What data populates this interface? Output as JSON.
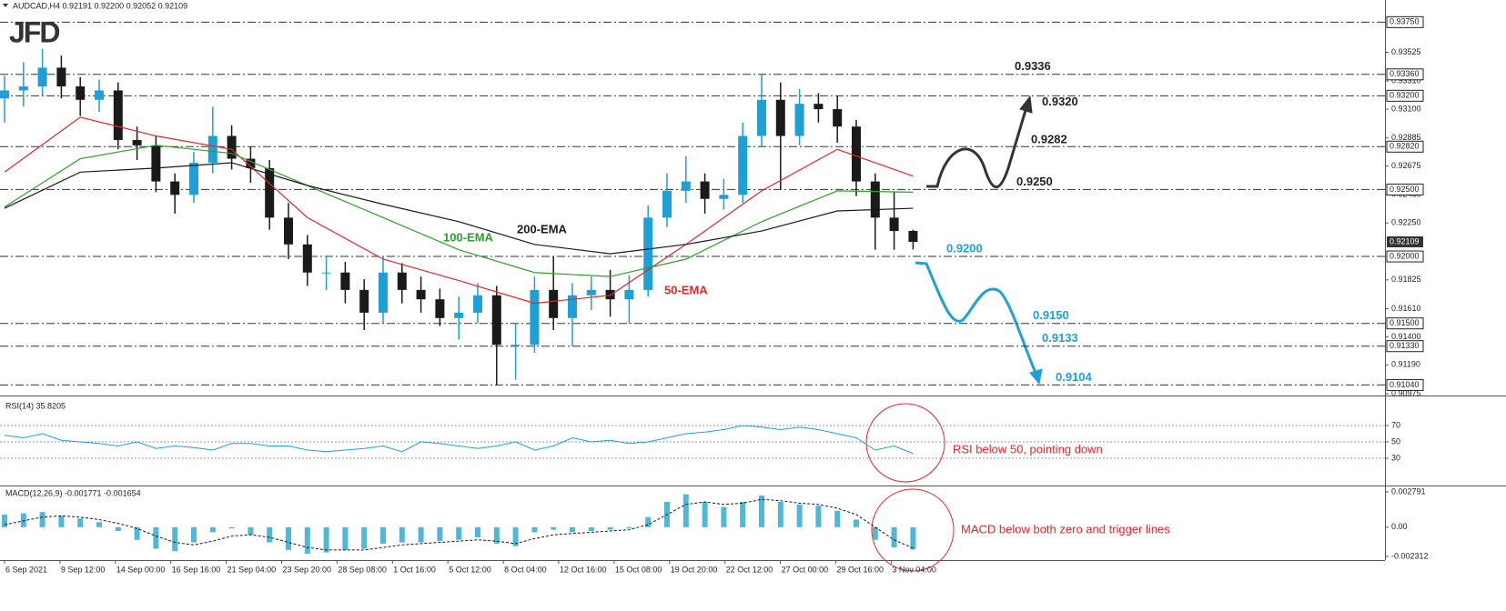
{
  "chart_data": [
    {
      "type": "candlestick",
      "header": "AUDCAD,H4 0.92191 0.92200 0.92052 0.92109",
      "logo": "JFD",
      "open": [
        0.9318,
        0.9324,
        0.9327,
        0.9341,
        0.9327,
        0.9317,
        0.9324,
        0.9287,
        0.9283,
        0.9256,
        0.9246,
        0.927,
        0.929,
        0.9273,
        0.9266,
        0.9229,
        0.9209,
        0.9188,
        0.9188,
        0.9175,
        0.9158,
        0.9188,
        0.9175,
        0.9168,
        0.9154,
        0.9158,
        0.9171,
        0.9134,
        0.9134,
        0.9175,
        0.9154,
        0.9171,
        0.9175,
        0.9168,
        0.9175,
        0.9229,
        0.9249,
        0.9256,
        0.9243,
        0.9246,
        0.929,
        0.9317,
        0.929,
        0.9314,
        0.931,
        0.9297,
        0.9256,
        0.9229,
        0.92191
      ],
      "high": [
        0.9335,
        0.9345,
        0.9355,
        0.935,
        0.9334,
        0.9332,
        0.933,
        0.9297,
        0.929,
        0.9262,
        0.9278,
        0.9312,
        0.9298,
        0.9282,
        0.9272,
        0.924,
        0.9216,
        0.92,
        0.9196,
        0.9183,
        0.92,
        0.9195,
        0.9185,
        0.9176,
        0.917,
        0.918,
        0.9178,
        0.915,
        0.9185,
        0.92,
        0.918,
        0.9185,
        0.919,
        0.9186,
        0.9238,
        0.9262,
        0.9275,
        0.9262,
        0.9258,
        0.93,
        0.9336,
        0.933,
        0.9325,
        0.9322,
        0.932,
        0.9302,
        0.9262,
        0.9248,
        0.922
      ],
      "low": [
        0.93,
        0.9312,
        0.932,
        0.9318,
        0.9305,
        0.9308,
        0.928,
        0.9272,
        0.9248,
        0.9232,
        0.924,
        0.9262,
        0.9265,
        0.9255,
        0.922,
        0.9198,
        0.9178,
        0.9175,
        0.9165,
        0.9145,
        0.915,
        0.9165,
        0.9158,
        0.9148,
        0.9138,
        0.915,
        0.9104,
        0.9108,
        0.9128,
        0.9145,
        0.9133,
        0.916,
        0.9155,
        0.915,
        0.917,
        0.9222,
        0.924,
        0.9232,
        0.9235,
        0.924,
        0.9282,
        0.925,
        0.9283,
        0.93,
        0.9285,
        0.9245,
        0.9205,
        0.9205,
        0.92052
      ],
      "close": [
        0.9324,
        0.9327,
        0.9341,
        0.9327,
        0.9317,
        0.9324,
        0.9287,
        0.9283,
        0.9256,
        0.9246,
        0.927,
        0.929,
        0.9273,
        0.9266,
        0.9229,
        0.9209,
        0.9188,
        0.9188,
        0.9175,
        0.9158,
        0.9188,
        0.9175,
        0.9168,
        0.9154,
        0.9158,
        0.9171,
        0.9134,
        0.9134,
        0.9175,
        0.9154,
        0.9171,
        0.9175,
        0.9168,
        0.9175,
        0.9229,
        0.9249,
        0.9256,
        0.9243,
        0.9246,
        0.929,
        0.9317,
        0.929,
        0.9314,
        0.931,
        0.9297,
        0.9256,
        0.9229,
        0.9219,
        0.92109
      ],
      "up_color": "#1e9fd6",
      "down_color": "#1a1a1a",
      "ylim": [
        0.90975,
        0.93895
      ],
      "yticks": [
        0.93525,
        {
          "value": 0.9331,
          "label": "0.93310"
        },
        {
          "value": 0.931,
          "label": "0.93100"
        },
        0.92885,
        0.92675,
        {
          "value": 0.9246,
          "label": "0.92460"
        },
        {
          "value": 0.9225,
          "label": "0.92250"
        },
        0.91825,
        {
          "value": 0.9161,
          "label": "0.91610"
        },
        {
          "value": 0.914,
          "label": "0.91400"
        },
        {
          "value": 0.9119,
          "label": "0.91190"
        },
        0.90975
      ],
      "levels": [
        {
          "value": 0.9375,
          "axis_label": "0.93750"
        },
        {
          "value": 0.9336,
          "label": "0.9336",
          "axis_label": "0.93360",
          "color": "#222222"
        },
        {
          "value": 0.932,
          "label": "0.9320",
          "axis_label": "0.93200",
          "color": "#222222"
        },
        {
          "value": 0.9282,
          "label": "0.9282",
          "axis_label": "0.92820",
          "color": "#222222"
        },
        {
          "value": 0.925,
          "label": "0.9250",
          "axis_label": "0.92500",
          "color": "#222222"
        },
        {
          "value": 0.92,
          "label": "0.9200",
          "axis_label": "0.92000",
          "color": "#1ea1d8"
        },
        {
          "value": 0.915,
          "label": "0.9150",
          "axis_label": "0.91500",
          "color": "#1ea1d8"
        },
        {
          "value": 0.9133,
          "label": "0.9133",
          "axis_label": "0.91330",
          "color": "#1ea1d8"
        },
        {
          "value": 0.9104,
          "label": "0.9104",
          "axis_label": "0.91040",
          "color": "#1ea1d8"
        }
      ],
      "series": [
        {
          "name": "50-EMA",
          "color": "#e8262a",
          "x": [
            0,
            4,
            8,
            12,
            16,
            20,
            24,
            28,
            32,
            36,
            40,
            44,
            48
          ],
          "values": [
            0.9263,
            0.9304,
            0.929,
            0.928,
            0.9229,
            0.9198,
            0.9182,
            0.9165,
            0.9171,
            0.9209,
            0.9249,
            0.928,
            0.926
          ]
        },
        {
          "name": "100-EMA",
          "color": "#2ca02c",
          "x": [
            0,
            4,
            8,
            12,
            16,
            20,
            24,
            28,
            32,
            36,
            40,
            44,
            48
          ],
          "values": [
            0.9237,
            0.9273,
            0.9283,
            0.9277,
            0.9253,
            0.9229,
            0.9205,
            0.9188,
            0.9185,
            0.9198,
            0.9226,
            0.9249,
            0.9248
          ]
        },
        {
          "name": "200-EMA",
          "color": "#1a1a1a",
          "x": [
            0,
            4,
            8,
            12,
            16,
            20,
            24,
            28,
            32,
            36,
            40,
            44,
            48
          ],
          "values": [
            0.9236,
            0.9263,
            0.9266,
            0.927,
            0.9253,
            0.9239,
            0.9226,
            0.9209,
            0.9202,
            0.9209,
            0.9219,
            0.9234,
            0.9236
          ]
        }
      ],
      "x_labels": [
        "6 Sep 2021",
        "9 Sep 12:00",
        "14 Sep 00:00",
        "16 Sep 16:00",
        "21 Sep 04:00",
        "23 Sep 20:00",
        "28 Sep 08:00",
        "1 Oct 16:00",
        "5 Oct 12:00",
        "8 Oct 04:00",
        "12 Oct 16:00",
        "15 Oct 08:00",
        "19 Oct 20:00",
        "22 Oct 12:00",
        "27 Oct 00:00",
        "29 Oct 16:00",
        "3 Nov 04:00"
      ]
    },
    {
      "type": "line",
      "title": "RSI(14) 35.8205",
      "values": [
        58,
        55,
        60,
        52,
        50,
        48,
        45,
        50,
        42,
        45,
        43,
        40,
        48,
        48,
        45,
        45,
        40,
        38,
        40,
        42,
        45,
        38,
        50,
        48,
        45,
        42,
        45,
        50,
        40,
        45,
        55,
        50,
        52,
        48,
        50,
        55,
        60,
        62,
        65,
        70,
        68,
        65,
        68,
        65,
        60,
        55,
        40,
        45,
        35.8205
      ],
      "color": "#1ea1d8",
      "ylim": [
        0,
        100
      ],
      "yticks": [
        30,
        50,
        70
      ],
      "grid": true,
      "annotation": "RSI below 50, pointing down"
    },
    {
      "type": "macd",
      "title": "MACD(12,26,9) -0.001771 -0.001654",
      "histogram": [
        0.001,
        0.0011,
        0.0012,
        0.0009,
        0.0007,
        0.0004,
        -0.0003,
        -0.001,
        -0.0017,
        -0.0019,
        -0.0012,
        -0.0004,
        -0.0001,
        -0.0006,
        -0.0012,
        -0.0018,
        -0.0021,
        -0.002,
        -0.0018,
        -0.0017,
        -0.0013,
        -0.0012,
        -0.0012,
        -0.0011,
        -0.001,
        -0.0008,
        -0.0013,
        -0.0015,
        -0.0004,
        -0.0002,
        -0.0004,
        -0.0003,
        -0.0002,
        -0.0001,
        0.0008,
        0.002,
        0.0026,
        0.002,
        0.0016,
        0.002,
        0.0025,
        0.002,
        0.0018,
        0.0017,
        0.0013,
        0.0006,
        -0.001,
        -0.0016,
        -0.001771
      ],
      "signal": [
        0.0002,
        0.0005,
        0.0008,
        0.0009,
        0.0008,
        0.0006,
        0.0003,
        -0.0001,
        -0.0007,
        -0.0012,
        -0.0014,
        -0.0011,
        -0.0007,
        -0.0006,
        -0.0008,
        -0.0012,
        -0.0016,
        -0.0018,
        -0.0018,
        -0.0018,
        -0.0016,
        -0.0014,
        -0.0013,
        -0.0012,
        -0.0011,
        -0.001,
        -0.0011,
        -0.0013,
        -0.0009,
        -0.0006,
        -0.0005,
        -0.0004,
        -0.0003,
        -0.0002,
        0.0002,
        0.001,
        0.0018,
        0.002,
        0.0018,
        0.0019,
        0.0022,
        0.0021,
        0.0019,
        0.0018,
        0.0015,
        0.001,
        0.0,
        -0.001,
        -0.001654
      ],
      "color": "#4fb8d8",
      "signal_color": "#1a1a1a",
      "ylim": [
        -0.002312,
        0.002791
      ],
      "yticks": [
        0.002791,
        {
          "value": 0,
          "label": "0.00"
        },
        -0.002312
      ],
      "annotation": "MACD below both zero and trigger lines"
    }
  ]
}
